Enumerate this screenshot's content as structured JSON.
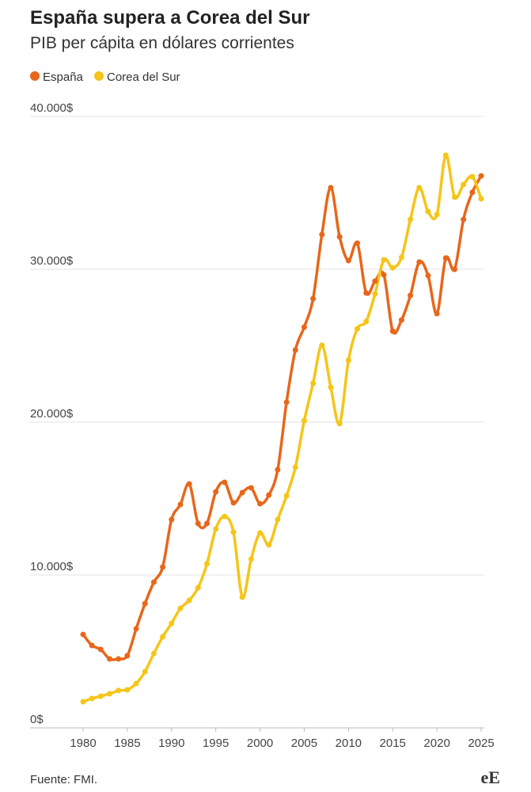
{
  "chart_data": {
    "type": "line",
    "title": "España supera a Corea del Sur",
    "subtitle": "PIB per cápita en dólares corrientes",
    "source": "Fuente: FMI.",
    "logo": "eE",
    "x": [
      1980,
      1981,
      1982,
      1983,
      1984,
      1985,
      1986,
      1987,
      1988,
      1989,
      1990,
      1991,
      1992,
      1993,
      1994,
      1995,
      1996,
      1997,
      1998,
      1999,
      2000,
      2001,
      2002,
      2003,
      2004,
      2005,
      2006,
      2007,
      2008,
      2009,
      2010,
      2011,
      2012,
      2013,
      2014,
      2015,
      2016,
      2017,
      2018,
      2019,
      2020,
      2021,
      2022,
      2023,
      2024,
      2025
    ],
    "series": [
      {
        "name": "España",
        "color": "#e8661a",
        "values": [
          6110,
          5390,
          5130,
          4510,
          4510,
          4720,
          6480,
          8130,
          9530,
          10520,
          13630,
          14610,
          15960,
          13370,
          13370,
          15440,
          16060,
          14720,
          15390,
          15700,
          14660,
          15230,
          16890,
          21300,
          24720,
          26220,
          28080,
          32280,
          35340,
          32120,
          30570,
          31710,
          28450,
          29220,
          29640,
          25960,
          26680,
          28290,
          30470,
          29590,
          27100,
          30730,
          30000,
          33260,
          35030,
          36110
        ]
      },
      {
        "name": "Corea del Sur",
        "color": "#f5c518",
        "values": [
          1710,
          1920,
          2070,
          2230,
          2440,
          2490,
          2900,
          3680,
          4870,
          5960,
          6840,
          7820,
          8340,
          9170,
          10730,
          13010,
          13830,
          12800,
          8550,
          11040,
          12750,
          11970,
          13630,
          15180,
          17050,
          20100,
          22540,
          25030,
          22280,
          19900,
          24040,
          26110,
          26580,
          28390,
          30620,
          30100,
          30780,
          33260,
          35340,
          33780,
          33580,
          37460,
          34720,
          35540,
          36060,
          34610
        ]
      }
    ],
    "xlim": [
      1980,
      2025
    ],
    "xticks": [
      1980,
      1985,
      1990,
      1995,
      2000,
      2005,
      2010,
      2015,
      2020,
      2025
    ],
    "ylim": [
      0,
      40000
    ],
    "yticks": [
      {
        "value": 0,
        "label": "0$"
      },
      {
        "value": 10000,
        "label": "10.000$"
      },
      {
        "value": 20000,
        "label": "20.000$"
      },
      {
        "value": 30000,
        "label": "30.000$"
      },
      {
        "value": 40000,
        "label": "40.000$"
      }
    ],
    "grid": true
  }
}
